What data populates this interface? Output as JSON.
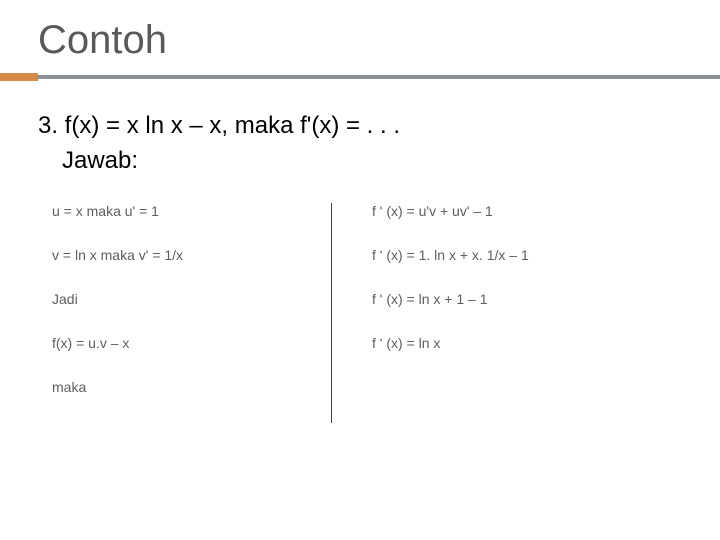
{
  "title": "Contoh",
  "problem_line1": "3. f(x) = x ln x – x, maka f'(x) = . . .",
  "problem_line2": "Jawab:",
  "left": {
    "l1": "u = x  maka u' = 1",
    "l2": "v = ln x maka v' = 1/x",
    "l3": "Jadi",
    "l4": "f(x) = u.v – x",
    "l5": "maka"
  },
  "right": {
    "r1": "f ' (x) = u'v + uv' – 1",
    "r2": "f ' (x) = 1. ln x + x. 1/x – 1",
    "r3": "f ' (x) = ln x + 1 – 1",
    "r4": "f ' (x) = ln x"
  },
  "colors": {
    "title_color": "#595959",
    "accent_orange": "#d38b47",
    "accent_gray": "#8a9196",
    "eq_color": "#5e5e5e"
  }
}
